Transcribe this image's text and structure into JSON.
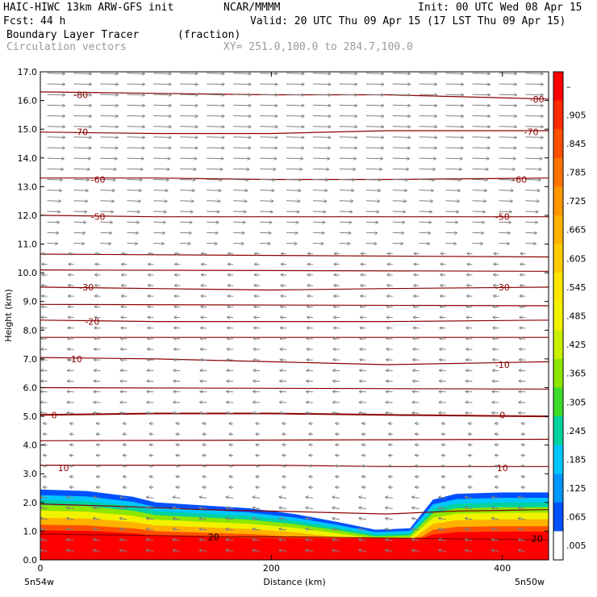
{
  "header": {
    "model": "HAIC-HIWC 13km ARW-GFS init",
    "org": "NCAR/MMMM",
    "init": "Init: 00 UTC Wed 08 Apr 15",
    "fcst_label": "Fcst:",
    "fcst_value": "44 h",
    "valid": "Valid: 20 UTC Thu 09 Apr 15 (17 LST Thu 09 Apr 15)",
    "field": "Boundary Layer Tracer",
    "field_units": "(fraction)",
    "vectors": "Circulation vectors",
    "xy": "XY= 251.0,100.0 to 284.7,100.0"
  },
  "chart_data": {
    "type": "cross-section",
    "ylabel": "Height (km)",
    "xlabel": "Distance (km)",
    "ylim": [
      0,
      17
    ],
    "xlim": [
      0,
      440
    ],
    "yticks": [
      "0.0",
      "1.0",
      "2.0",
      "3.0",
      "4.0",
      "5.0",
      "6.0",
      "7.0",
      "8.0",
      "9.0",
      "10.0",
      "11.0",
      "12.0",
      "13.0",
      "14.0",
      "15.0",
      "16.0",
      "17.0"
    ],
    "xticks": [
      {
        "v": 0,
        "label": "0"
      },
      {
        "v": 200,
        "label": "200"
      },
      {
        "v": 400,
        "label": "400"
      }
    ],
    "x_end_labels": [
      "5n54w",
      "5n50w"
    ],
    "colorbar": {
      "labels": [
        "–",
        ".905",
        ".845",
        ".785",
        ".725",
        ".665",
        ".605",
        ".545",
        ".485",
        ".425",
        ".365",
        ".305",
        ".245",
        ".185",
        ".125",
        ".065",
        ".005"
      ],
      "colors": [
        "#ff0000",
        "#ff2a00",
        "#ff5000",
        "#ff7400",
        "#ff9600",
        "#ffb200",
        "#ffcc00",
        "#ffe600",
        "#f2f200",
        "#c8f000",
        "#8ce600",
        "#3cdc28",
        "#00d2a0",
        "#00c8ff",
        "#0096ff",
        "#0050ff",
        "#ffffff"
      ]
    },
    "temperature_contours": [
      {
        "label": "-80",
        "pts": [
          [
            0,
            16.3
          ],
          [
            100,
            16.25
          ],
          [
            200,
            16.2
          ],
          [
            300,
            16.2
          ],
          [
            440,
            16.05
          ]
        ],
        "label_at": [
          [
            35,
            16.2
          ],
          [
            430,
            16.05
          ]
        ]
      },
      {
        "label": "-70",
        "pts": [
          [
            0,
            14.9
          ],
          [
            100,
            14.85
          ],
          [
            200,
            14.85
          ],
          [
            300,
            14.95
          ],
          [
            440,
            14.95
          ]
        ],
        "label_at": [
          [
            35,
            14.9
          ],
          [
            425,
            14.9
          ]
        ]
      },
      {
        "label": "-60",
        "pts": [
          [
            0,
            13.3
          ],
          [
            100,
            13.3
          ],
          [
            200,
            13.25
          ],
          [
            300,
            13.25
          ],
          [
            440,
            13.3
          ]
        ],
        "label_at": [
          [
            50,
            13.25
          ],
          [
            415,
            13.25
          ]
        ]
      },
      {
        "label": "-50",
        "pts": [
          [
            0,
            12.0
          ],
          [
            100,
            11.95
          ],
          [
            200,
            11.95
          ],
          [
            300,
            11.95
          ],
          [
            440,
            11.95
          ]
        ],
        "label_at": [
          [
            50,
            11.95
          ],
          [
            400,
            11.95
          ]
        ]
      },
      {
        "label": "",
        "pts": [
          [
            0,
            10.65
          ],
          [
            440,
            10.55
          ]
        ],
        "label_at": []
      },
      {
        "label": "",
        "pts": [
          [
            0,
            10.1
          ],
          [
            440,
            10.05
          ]
        ],
        "label_at": []
      },
      {
        "label": "-30",
        "pts": [
          [
            0,
            9.5
          ],
          [
            100,
            9.45
          ],
          [
            200,
            9.4
          ],
          [
            300,
            9.45
          ],
          [
            440,
            9.5
          ]
        ],
        "label_at": [
          [
            40,
            9.5
          ],
          [
            400,
            9.5
          ]
        ]
      },
      {
        "label": "",
        "pts": [
          [
            0,
            8.9
          ],
          [
            440,
            8.85
          ]
        ],
        "label_at": []
      },
      {
        "label": "-20",
        "pts": [
          [
            0,
            8.35
          ],
          [
            100,
            8.3
          ],
          [
            200,
            8.3
          ],
          [
            300,
            8.3
          ],
          [
            440,
            8.35
          ]
        ],
        "label_at": [
          [
            45,
            8.3
          ]
        ]
      },
      {
        "label": "",
        "pts": [
          [
            0,
            7.75
          ],
          [
            440,
            7.75
          ]
        ],
        "label_at": []
      },
      {
        "label": "-10",
        "pts": [
          [
            0,
            7.05
          ],
          [
            100,
            7.0
          ],
          [
            200,
            6.9
          ],
          [
            300,
            6.8
          ],
          [
            440,
            6.9
          ]
        ],
        "label_at": [
          [
            30,
            7.0
          ],
          [
            400,
            6.8
          ]
        ]
      },
      {
        "label": "",
        "pts": [
          [
            0,
            6.0
          ],
          [
            440,
            5.95
          ]
        ],
        "label_at": []
      },
      {
        "label": "0",
        "pts": [
          [
            0,
            5.05
          ],
          [
            100,
            5.1
          ],
          [
            200,
            5.1
          ],
          [
            300,
            5.05
          ],
          [
            440,
            5.0
          ]
        ],
        "label_at": [
          [
            12,
            5.05
          ],
          [
            400,
            5.05
          ]
        ]
      },
      {
        "label": "",
        "pts": [
          [
            0,
            4.15
          ],
          [
            440,
            4.2
          ]
        ],
        "label_at": []
      },
      {
        "label": "10",
        "pts": [
          [
            0,
            3.3
          ],
          [
            100,
            3.3
          ],
          [
            200,
            3.3
          ],
          [
            300,
            3.25
          ],
          [
            440,
            3.25
          ]
        ],
        "label_at": [
          [
            20,
            3.2
          ],
          [
            400,
            3.2
          ]
        ]
      },
      {
        "label": "",
        "pts": [
          [
            0,
            1.95
          ],
          [
            80,
            1.85
          ],
          [
            140,
            1.75
          ],
          [
            200,
            1.7
          ],
          [
            300,
            1.6
          ],
          [
            360,
            1.7
          ],
          [
            440,
            1.75
          ]
        ],
        "label_at": []
      },
      {
        "label": "20",
        "pts": [
          [
            0,
            0.9
          ],
          [
            100,
            0.85
          ],
          [
            160,
            0.8
          ],
          [
            220,
            0.8
          ],
          [
            320,
            0.75
          ],
          [
            440,
            0.7
          ]
        ],
        "label_at": [
          [
            150,
            0.8
          ],
          [
            430,
            0.75
          ]
        ]
      }
    ]
  }
}
